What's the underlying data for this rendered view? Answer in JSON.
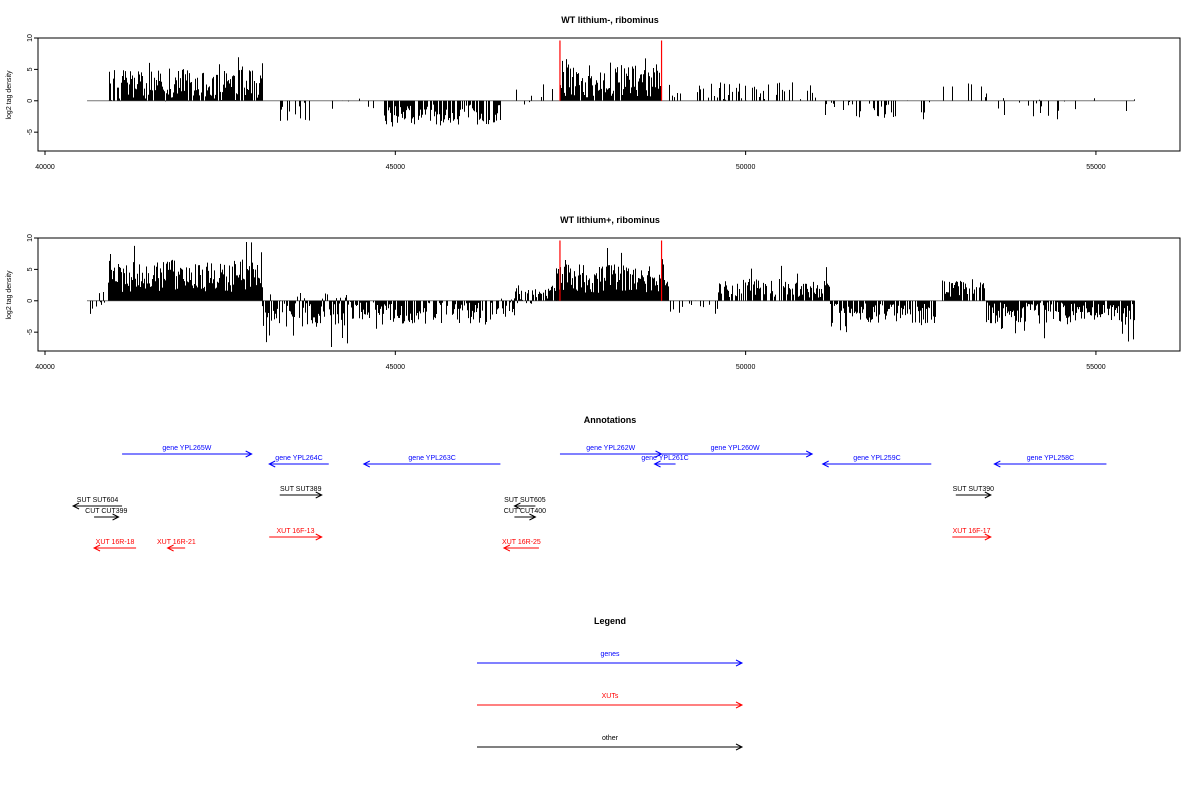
{
  "figure": {
    "annotations_title": "Annotations",
    "legend_title": "Legend",
    "legend": [
      {
        "label": "genes",
        "color": "#0000ff"
      },
      {
        "label": "XUTs",
        "color": "#ff0000"
      },
      {
        "label": "other",
        "color": "#000000"
      }
    ]
  },
  "colors": {
    "gene": "#0000ff",
    "xut": "#ff0000",
    "other": "#000000",
    "marker": "#ff0000",
    "bars": "#000000",
    "baseline": "#777777"
  },
  "chart_data": [
    {
      "type": "bar",
      "title": "WT lithium-, ribominus",
      "ylabel": "log2 tag density",
      "xlabel": "",
      "xlim": [
        39900,
        56200
      ],
      "ylim": [
        -8,
        10
      ],
      "xticks": [
        40000,
        45000,
        50000,
        55000
      ],
      "yticks": [
        -5,
        0,
        5,
        10
      ],
      "baseline_range": [
        40600,
        55550
      ],
      "marker_lines": [
        47350,
        48800
      ],
      "grid": false,
      "segments": [
        {
          "x": [
            40900,
            43100
          ],
          "mean": 2.5,
          "amp": 2.6,
          "max": 7.0,
          "min": -3.0,
          "density": 0.9
        },
        {
          "x": [
            43200,
            43800
          ],
          "mean": -1.5,
          "amp": 2.0,
          "max": 0,
          "min": -5.0,
          "density": 0.4
        },
        {
          "x": [
            44100,
            44700
          ],
          "mean": -0.5,
          "amp": 1.2,
          "max": 2.0,
          "min": -2.0,
          "density": 0.15
        },
        {
          "x": [
            44800,
            46500
          ],
          "mean": -2.2,
          "amp": 1.6,
          "max": 0,
          "min": -4.5,
          "density": 0.75
        },
        {
          "x": [
            46700,
            47300
          ],
          "mean": 1.0,
          "amp": 1.8,
          "max": 3.0,
          "min": -3.0,
          "density": 0.3
        },
        {
          "x": [
            47350,
            48800
          ],
          "mean": 3.0,
          "amp": 2.5,
          "max": 7.0,
          "min": 0,
          "density": 0.95
        },
        {
          "x": [
            48900,
            49100
          ],
          "mean": 1.0,
          "amp": 1.0,
          "max": 3.0,
          "min": -1.0,
          "density": 0.3
        },
        {
          "x": [
            49300,
            51000
          ],
          "mean": 1.5,
          "amp": 1.5,
          "max": 4.0,
          "min": -1.0,
          "density": 0.35
        },
        {
          "x": [
            51100,
            52700
          ],
          "mean": -1.5,
          "amp": 1.5,
          "max": 0,
          "min": -3.0,
          "density": 0.3
        },
        {
          "x": [
            52800,
            53500
          ],
          "mean": 1.0,
          "amp": 2.0,
          "max": 3.5,
          "min": -3.5,
          "density": 0.15
        },
        {
          "x": [
            53600,
            55550
          ],
          "mean": -1.0,
          "amp": 1.5,
          "max": 0.5,
          "min": -3.5,
          "density": 0.12
        }
      ]
    },
    {
      "type": "bar",
      "title": "WT lithium+, ribominus",
      "ylabel": "log2 tag density",
      "xlabel": "",
      "xlim": [
        39900,
        56200
      ],
      "ylim": [
        -8,
        10
      ],
      "xticks": [
        40000,
        45000,
        50000,
        55000
      ],
      "yticks": [
        -5,
        0,
        5,
        10
      ],
      "baseline_range": [
        40600,
        55550
      ],
      "marker_lines": [
        47350,
        48800
      ],
      "grid": false,
      "segments": [
        {
          "x": [
            40600,
            40900
          ],
          "mean": -0.5,
          "amp": 2.0,
          "max": 2.0,
          "min": -2.5,
          "density": 0.5
        },
        {
          "x": [
            40900,
            43100
          ],
          "mean": 4.0,
          "amp": 2.6,
          "max": 9.5,
          "min": -2.0,
          "density": 1.0
        },
        {
          "x": [
            43100,
            44400
          ],
          "mean": -1.5,
          "amp": 2.8,
          "max": 4.0,
          "min": -7.5,
          "density": 0.85
        },
        {
          "x": [
            44400,
            46300
          ],
          "mean": -2.0,
          "amp": 1.8,
          "max": 1.0,
          "min": -4.5,
          "density": 0.8
        },
        {
          "x": [
            46300,
            46700
          ],
          "mean": -1.0,
          "amp": 1.5,
          "max": 1.0,
          "min": -3.0,
          "density": 0.6
        },
        {
          "x": [
            46700,
            47300
          ],
          "mean": 1.0,
          "amp": 1.5,
          "max": 3.0,
          "min": -2.0,
          "density": 0.8
        },
        {
          "x": [
            47300,
            48900
          ],
          "mean": 3.5,
          "amp": 2.4,
          "max": 9.0,
          "min": -2.0,
          "density": 1.0
        },
        {
          "x": [
            48900,
            49600
          ],
          "mean": -1.0,
          "amp": 1.2,
          "max": 1.0,
          "min": -2.5,
          "density": 0.4
        },
        {
          "x": [
            49600,
            51200
          ],
          "mean": 2.0,
          "amp": 1.5,
          "max": 6.0,
          "min": -1.0,
          "density": 0.7
        },
        {
          "x": [
            51200,
            52700
          ],
          "mean": -2.0,
          "amp": 1.6,
          "max": 0,
          "min": -5.5,
          "density": 0.85
        },
        {
          "x": [
            52800,
            53400
          ],
          "mean": 2.0,
          "amp": 1.5,
          "max": 4.5,
          "min": -2.0,
          "density": 0.8
        },
        {
          "x": [
            53400,
            55550
          ],
          "mean": -2.0,
          "amp": 1.8,
          "max": 2.5,
          "min": -7.0,
          "density": 0.9
        }
      ]
    }
  ],
  "annotations": [
    {
      "label": "gene YPL265W",
      "start": 41100,
      "end": 42950,
      "strand": "+",
      "type": "gene",
      "row": 0
    },
    {
      "label": "gene YPL264C",
      "start": 44050,
      "end": 43200,
      "strand": "-",
      "type": "gene",
      "row": 1
    },
    {
      "label": "gene YPL263C",
      "start": 46500,
      "end": 44550,
      "strand": "-",
      "type": "gene",
      "row": 1
    },
    {
      "label": "gene YPL262W",
      "start": 47350,
      "end": 48800,
      "strand": "+",
      "type": "gene",
      "row": 0
    },
    {
      "label": "gene YPL261C",
      "start": 49000,
      "end": 48700,
      "strand": "-",
      "type": "gene",
      "row": 1
    },
    {
      "label": "gene YPL260W",
      "start": 48750,
      "end": 50950,
      "strand": "+",
      "type": "gene",
      "row": 0
    },
    {
      "label": "gene YPL259C",
      "start": 52650,
      "end": 51100,
      "strand": "-",
      "type": "gene",
      "row": 1
    },
    {
      "label": "gene YPL258C",
      "start": 55150,
      "end": 53550,
      "strand": "-",
      "type": "gene",
      "row": 1
    },
    {
      "label": "SUT SUT604",
      "start": 41100,
      "end": 40400,
      "strand": "-",
      "type": "other",
      "row": 3
    },
    {
      "label": "CUT CUT399",
      "start": 40700,
      "end": 41050,
      "strand": "+",
      "type": "other",
      "row": 4
    },
    {
      "label": "SUT SUT389",
      "start": 43350,
      "end": 43950,
      "strand": "+",
      "type": "other",
      "row": 2
    },
    {
      "label": "SUT SUT605",
      "start": 47000,
      "end": 46700,
      "strand": "-",
      "type": "other",
      "row": 3
    },
    {
      "label": "CUT CUT400",
      "start": 46700,
      "end": 47000,
      "strand": "+",
      "type": "other",
      "row": 4
    },
    {
      "label": "SUT SUT390",
      "start": 53000,
      "end": 53500,
      "strand": "+",
      "type": "other",
      "row": 2
    },
    {
      "label": "XUT 16R-18",
      "start": 41300,
      "end": 40700,
      "strand": "-",
      "type": "xut",
      "row": 6
    },
    {
      "label": "XUT 16R-21",
      "start": 42000,
      "end": 41750,
      "strand": "-",
      "type": "xut",
      "row": 6
    },
    {
      "label": "XUT 16F-13",
      "start": 43200,
      "end": 43950,
      "strand": "+",
      "type": "xut",
      "row": 5
    },
    {
      "label": "XUT 16R-25",
      "start": 47050,
      "end": 46550,
      "strand": "-",
      "type": "xut",
      "row": 6
    },
    {
      "label": "XUT 16F-17",
      "start": 52950,
      "end": 53500,
      "strand": "+",
      "type": "xut",
      "row": 5
    }
  ]
}
